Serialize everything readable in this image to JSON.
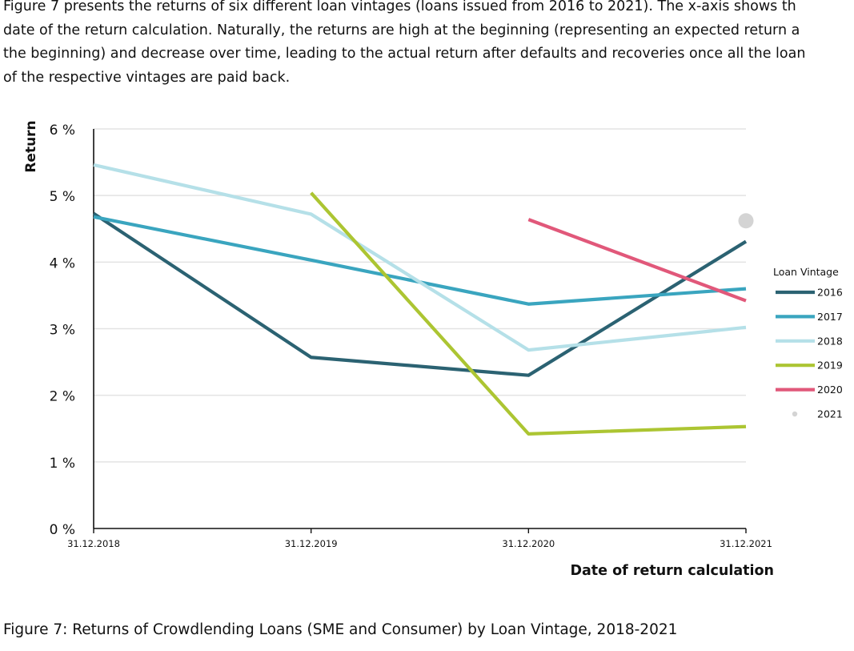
{
  "intro": {
    "lines": [
      "Figure 7 presents the returns of six different loan vintages (loans issued from 2016 to 2021). The x-axis shows th",
      "date of the return calculation. Naturally, the returns are high at the beginning (representing an expected return a",
      "the beginning) and decrease over time, leading to the actual return after defaults and recoveries once all the loan",
      "of the respective vintages are paid back."
    ]
  },
  "caption": "Figure 7: Returns of Crowdlending Loans (SME and Consumer) by Loan Vintage, 2018-2021",
  "chart_data": {
    "type": "line",
    "title": "",
    "xlabel": "Date of return calculation",
    "ylabel": "Return",
    "categories": [
      "31.12.2018",
      "31.12.2019",
      "31.12.2020",
      "31.12.2021"
    ],
    "ylim": [
      0,
      6
    ],
    "yticks": [
      "0 %",
      "1 %",
      "2 %",
      "3 %",
      "4 %",
      "5 %",
      "6 %"
    ],
    "grid": true,
    "legend_title": "Loan Vintage",
    "legend_position": "right",
    "series": [
      {
        "name": "2016",
        "color": "#2b6272",
        "values": [
          4.73,
          2.57,
          2.3,
          4.31
        ]
      },
      {
        "name": "2017",
        "color": "#3aa5bf",
        "values": [
          4.68,
          4.03,
          3.37,
          3.6
        ]
      },
      {
        "name": "2018",
        "color": "#b5e0e8",
        "values": [
          5.46,
          4.72,
          2.68,
          3.02
        ]
      },
      {
        "name": "2019",
        "color": "#acc532",
        "values": [
          null,
          5.04,
          1.42,
          1.53
        ]
      },
      {
        "name": "2020",
        "color": "#e1587a",
        "values": [
          null,
          null,
          4.64,
          3.42
        ]
      },
      {
        "name": "2021",
        "color": "#d4d4d4",
        "values": [
          null,
          null,
          null,
          4.62
        ],
        "marker": "point"
      }
    ]
  }
}
